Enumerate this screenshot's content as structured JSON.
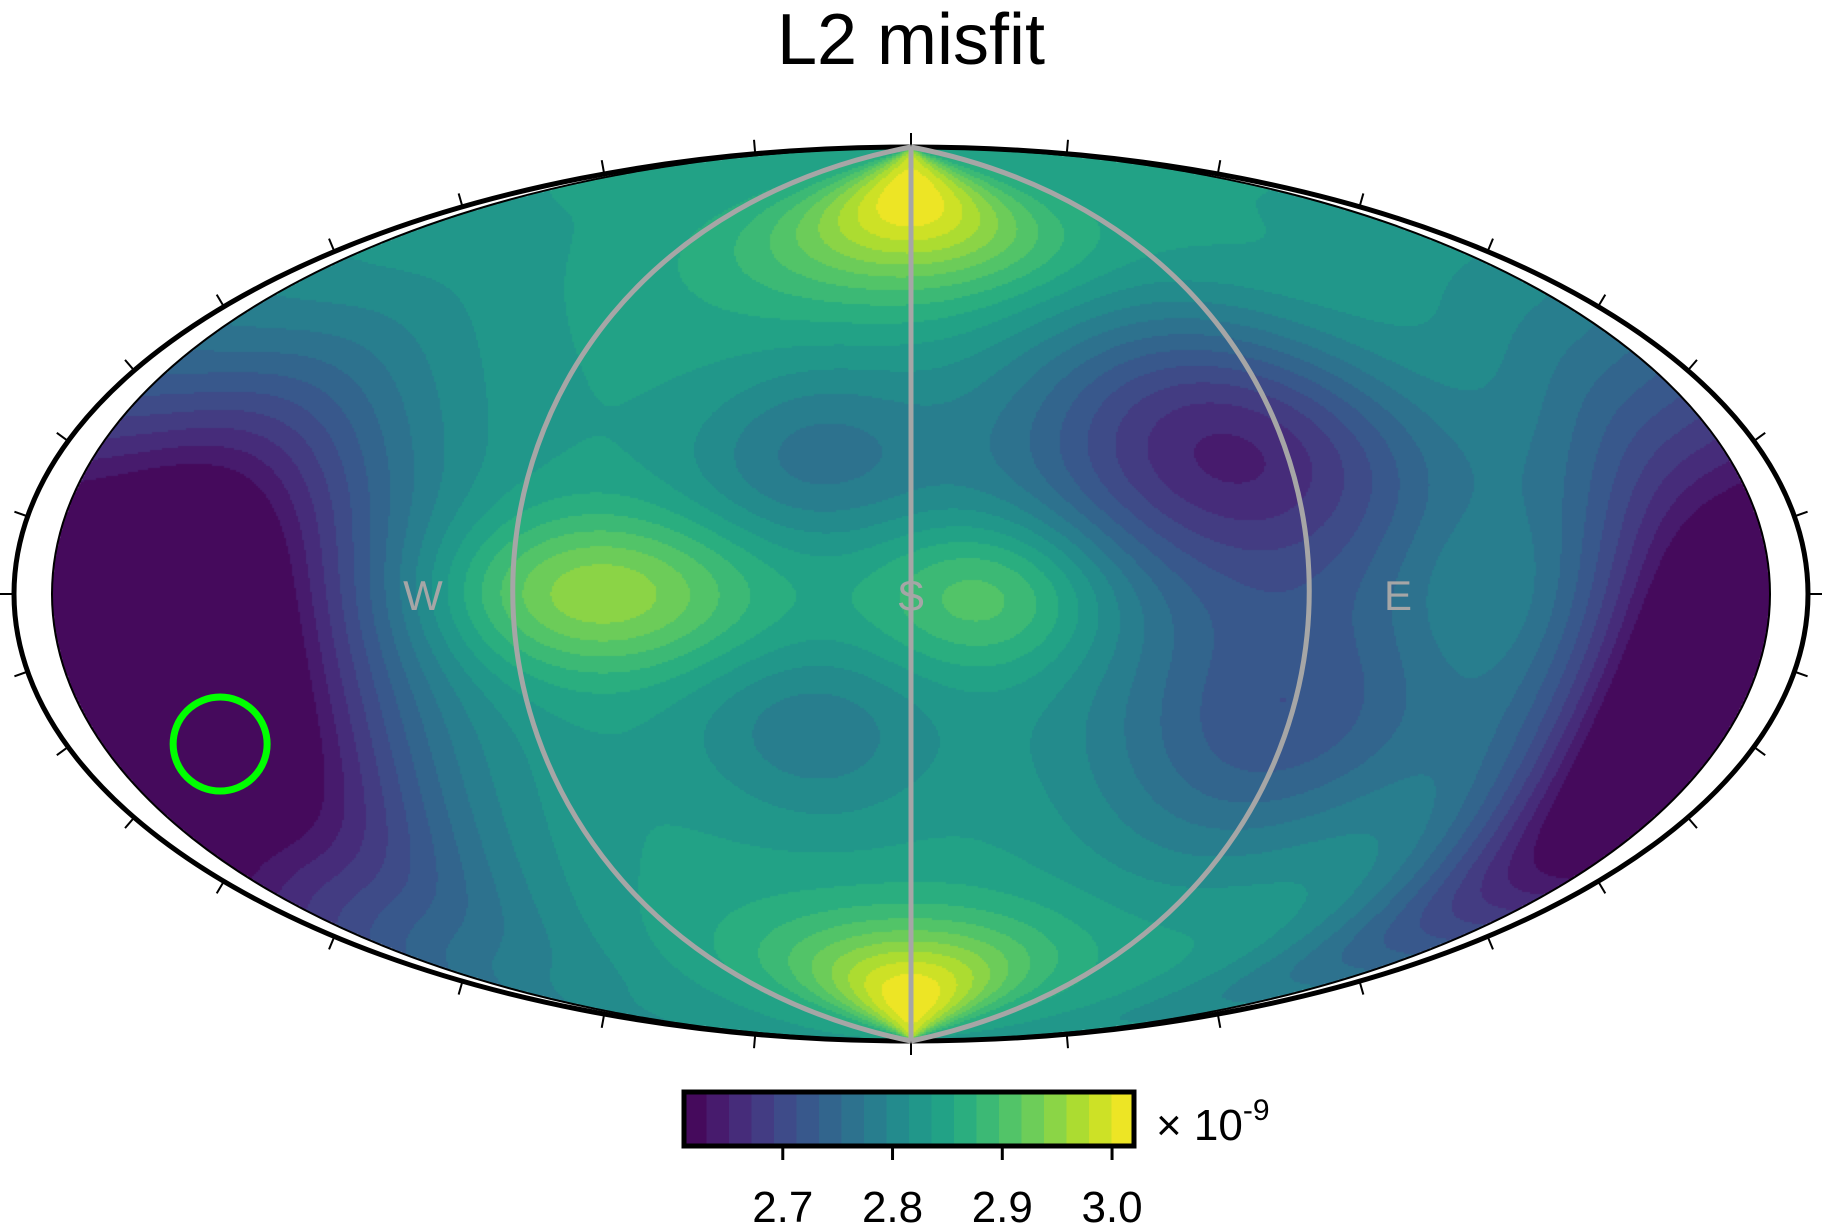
{
  "chart_data": {
    "type": "heatmap",
    "title": "L2 misfit",
    "projection": "hammer-aitoff",
    "projection_labels": {
      "west": "W",
      "south": "S",
      "east": "E"
    },
    "colormap": "viridis",
    "colorbar": {
      "min": 2.61,
      "max": 3.02,
      "ticks": [
        2.7,
        2.8,
        2.9,
        3.0
      ],
      "tick_labels": [
        "2.7",
        "2.8",
        "2.9",
        "3.0"
      ],
      "scale_prefix": "× 10",
      "scale_exponent": "-9",
      "levels": 20
    },
    "field": {
      "baseline": 2.84,
      "features": [
        {
          "kind": "min",
          "lon": -150,
          "lat": -22,
          "value": 2.61,
          "spread_lon": 32,
          "spread_lat": 22
        },
        {
          "kind": "min",
          "lon": -145,
          "lat": 10,
          "value": 2.66,
          "spread_lon": 30,
          "spread_lat": 20
        },
        {
          "kind": "min",
          "lon": 160,
          "lat": -15,
          "value": 2.62,
          "spread_lon": 22,
          "spread_lat": 28
        },
        {
          "kind": "min",
          "lon": 65,
          "lat": 25,
          "value": 2.65,
          "spread_lon": 32,
          "spread_lat": 18
        },
        {
          "kind": "min",
          "lon": 75,
          "lat": -22,
          "value": 2.72,
          "spread_lon": 28,
          "spread_lat": 18
        },
        {
          "kind": "min",
          "lon": -20,
          "lat": 25,
          "value": 2.77,
          "spread_lon": 18,
          "spread_lat": 12
        },
        {
          "kind": "min",
          "lon": -20,
          "lat": -25,
          "value": 2.78,
          "spread_lon": 18,
          "spread_lat": 12
        },
        {
          "kind": "max",
          "lon": 0,
          "lat": 78,
          "value": 3.02,
          "spread_lon": 45,
          "spread_lat": 14
        },
        {
          "kind": "max",
          "lon": 0,
          "lat": -80,
          "value": 3.02,
          "spread_lon": 45,
          "spread_lat": 12
        },
        {
          "kind": "max",
          "lon": -60,
          "lat": 0,
          "value": 2.96,
          "spread_lon": 22,
          "spread_lat": 10
        },
        {
          "kind": "max",
          "lon": 15,
          "lat": 0,
          "value": 2.93,
          "spread_lon": 16,
          "spread_lat": 10
        },
        {
          "kind": "max",
          "lon": 110,
          "lat": 0,
          "value": 2.86,
          "spread_lon": 14,
          "spread_lat": 10
        }
      ]
    },
    "best_fit_marker": {
      "lon": -150,
      "lat": -22,
      "color": "#00ff00"
    },
    "source_lines_color": "#a6a6a6"
  }
}
